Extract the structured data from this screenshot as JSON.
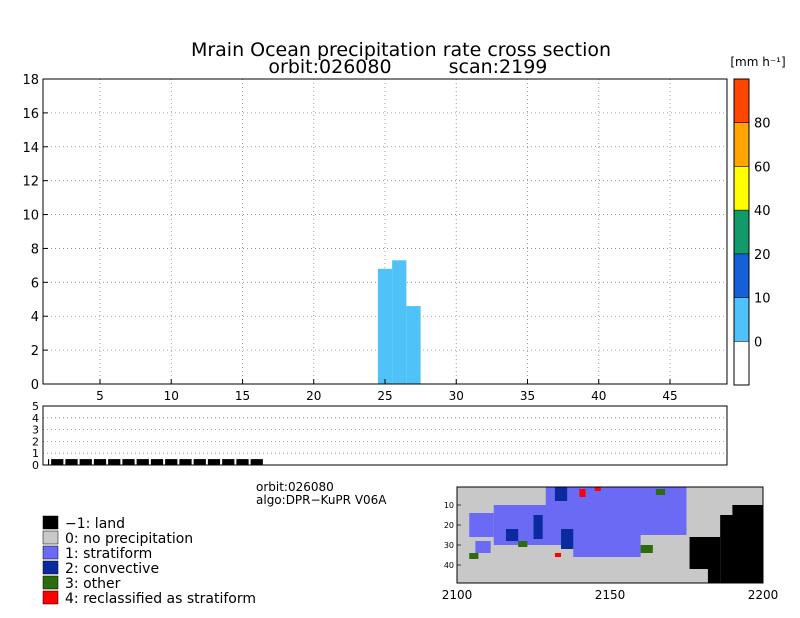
{
  "title": {
    "line1": "Mrain Ocean precipitation rate cross section",
    "line2_orbit": "orbit:026080",
    "line2_scan": "scan:2199"
  },
  "colorbar": {
    "unit_label": "[mm h⁻¹]",
    "bins": [
      {
        "from": -10,
        "to": 0,
        "color": "#ffffff"
      },
      {
        "from": 0,
        "to": 10,
        "color": "#4fc3f7"
      },
      {
        "from": 10,
        "to": 20,
        "color": "#1560d8"
      },
      {
        "from": 20,
        "to": 40,
        "color": "#139a6a"
      },
      {
        "from": 40,
        "to": 60,
        "color": "#ffff00"
      },
      {
        "from": 60,
        "to": 80,
        "color": "#ffa500"
      },
      {
        "from": 80,
        "to": 100,
        "color": "#ff4500"
      }
    ],
    "tick_labels": [
      "0",
      "10",
      "20",
      "40",
      "60",
      "80"
    ]
  },
  "info": {
    "orbit": "orbit:026080",
    "algo": "algo:DPR−KuPR V06A"
  },
  "legend": [
    {
      "label": "−1: land",
      "color": "#000000"
    },
    {
      "label": "0: no precipitation",
      "color": "#c8c8c8"
    },
    {
      "label": "1: stratiform",
      "color": "#6a6af5"
    },
    {
      "label": "2: convective",
      "color": "#0a2a9e"
    },
    {
      "label": "3: other",
      "color": "#2e6b0e"
    },
    {
      "label": "4: reclassified as stratiform",
      "color": "#ff0000"
    }
  ],
  "chart_data": [
    {
      "type": "bar",
      "name": "cross-section",
      "xlim": [
        1,
        49
      ],
      "ylim": [
        0,
        18
      ],
      "x_ticks": [
        5,
        10,
        15,
        20,
        25,
        30,
        35,
        40,
        45
      ],
      "y_ticks": [
        0,
        2,
        4,
        6,
        8,
        10,
        12,
        14,
        16,
        18
      ],
      "grid": true,
      "bars": [
        {
          "x": 25,
          "height": 6.8,
          "color": "#4fc3f7"
        },
        {
          "x": 26,
          "height": 7.3,
          "color": "#4fc3f7"
        },
        {
          "x": 27,
          "height": 4.6,
          "color": "#4fc3f7"
        }
      ]
    },
    {
      "type": "bar",
      "name": "precip-type-strip",
      "xlim": [
        1,
        49
      ],
      "ylim": [
        0,
        5
      ],
      "y_ticks": [
        0,
        1,
        2,
        3,
        4,
        5
      ],
      "grid": true,
      "x": [
        1,
        2,
        3,
        4,
        5,
        6,
        7,
        8,
        9,
        10,
        11,
        12,
        13,
        14,
        15,
        16,
        17,
        18,
        19,
        20,
        21,
        22,
        23,
        24,
        25,
        26,
        27,
        28,
        29,
        30,
        31,
        32,
        33,
        34,
        35,
        36,
        37,
        38,
        39,
        40,
        41,
        42,
        43,
        44,
        45,
        46,
        47,
        48,
        49
      ],
      "values": [
        0.5,
        0.5,
        0.5,
        0.5,
        0.5,
        0.5,
        0.5,
        0.5,
        0.5,
        0.5,
        0.5,
        0.5,
        0.5,
        0.5,
        0.5,
        0.5,
        0,
        0,
        0,
        0,
        0,
        0,
        0,
        0,
        0,
        0,
        0,
        0,
        0,
        0,
        0,
        0,
        0,
        0,
        0,
        0,
        0,
        0,
        0,
        0,
        0,
        0,
        0,
        0,
        0,
        0,
        0,
        0,
        0
      ],
      "color": "#000000"
    },
    {
      "type": "heatmap",
      "name": "swath-map",
      "xlim": [
        2100,
        2200
      ],
      "ylim": [
        49,
        1
      ],
      "x_ticks": [
        2100,
        2150,
        2200
      ],
      "y_ticks": [
        10,
        20,
        30,
        40
      ],
      "background_category": 0,
      "regions": [
        {
          "category": 1,
          "scan_from": 2129,
          "scan_to": 2175,
          "ray_from": 1,
          "ray_to": 25
        },
        {
          "category": 1,
          "scan_from": 2112,
          "scan_to": 2140,
          "ray_from": 10,
          "ray_to": 30
        },
        {
          "category": 1,
          "scan_from": 2138,
          "scan_to": 2160,
          "ray_from": 25,
          "ray_to": 36
        },
        {
          "category": 1,
          "scan_from": 2104,
          "scan_to": 2112,
          "ray_from": 14,
          "ray_to": 26
        },
        {
          "category": 1,
          "scan_from": 2106,
          "scan_to": 2111,
          "ray_from": 28,
          "ray_to": 34
        },
        {
          "category": 2,
          "scan_from": 2125,
          "scan_to": 2128,
          "ray_from": 15,
          "ray_to": 27
        },
        {
          "category": 2,
          "scan_from": 2132,
          "scan_to": 2136,
          "ray_from": 1,
          "ray_to": 8
        },
        {
          "category": 2,
          "scan_from": 2116,
          "scan_to": 2120,
          "ray_from": 22,
          "ray_to": 28
        },
        {
          "category": 2,
          "scan_from": 2134,
          "scan_to": 2138,
          "ray_from": 22,
          "ray_to": 32
        },
        {
          "category": 3,
          "scan_from": 2165,
          "scan_to": 2168,
          "ray_from": 2,
          "ray_to": 5
        },
        {
          "category": 3,
          "scan_from": 2120,
          "scan_to": 2123,
          "ray_from": 28,
          "ray_to": 31
        },
        {
          "category": 3,
          "scan_from": 2160,
          "scan_to": 2164,
          "ray_from": 30,
          "ray_to": 34
        },
        {
          "category": 3,
          "scan_from": 2104,
          "scan_to": 2107,
          "ray_from": 34,
          "ray_to": 37
        },
        {
          "category": 4,
          "scan_from": 2140,
          "scan_to": 2142,
          "ray_from": 2,
          "ray_to": 6
        },
        {
          "category": 4,
          "scan_from": 2132,
          "scan_to": 2134,
          "ray_from": 34,
          "ray_to": 36
        },
        {
          "category": 4,
          "scan_from": 2145,
          "scan_to": 2147,
          "ray_from": 1,
          "ray_to": 3
        },
        {
          "category": -1,
          "scan_from": 2186,
          "scan_to": 2200,
          "ray_from": 15,
          "ray_to": 49
        },
        {
          "category": -1,
          "scan_from": 2190,
          "scan_to": 2200,
          "ray_from": 10,
          "ray_to": 15
        },
        {
          "category": -1,
          "scan_from": 2176,
          "scan_to": 2186,
          "ray_from": 26,
          "ray_to": 42
        },
        {
          "category": -1,
          "scan_from": 2182,
          "scan_to": 2186,
          "ray_from": 42,
          "ray_to": 49
        }
      ]
    }
  ]
}
